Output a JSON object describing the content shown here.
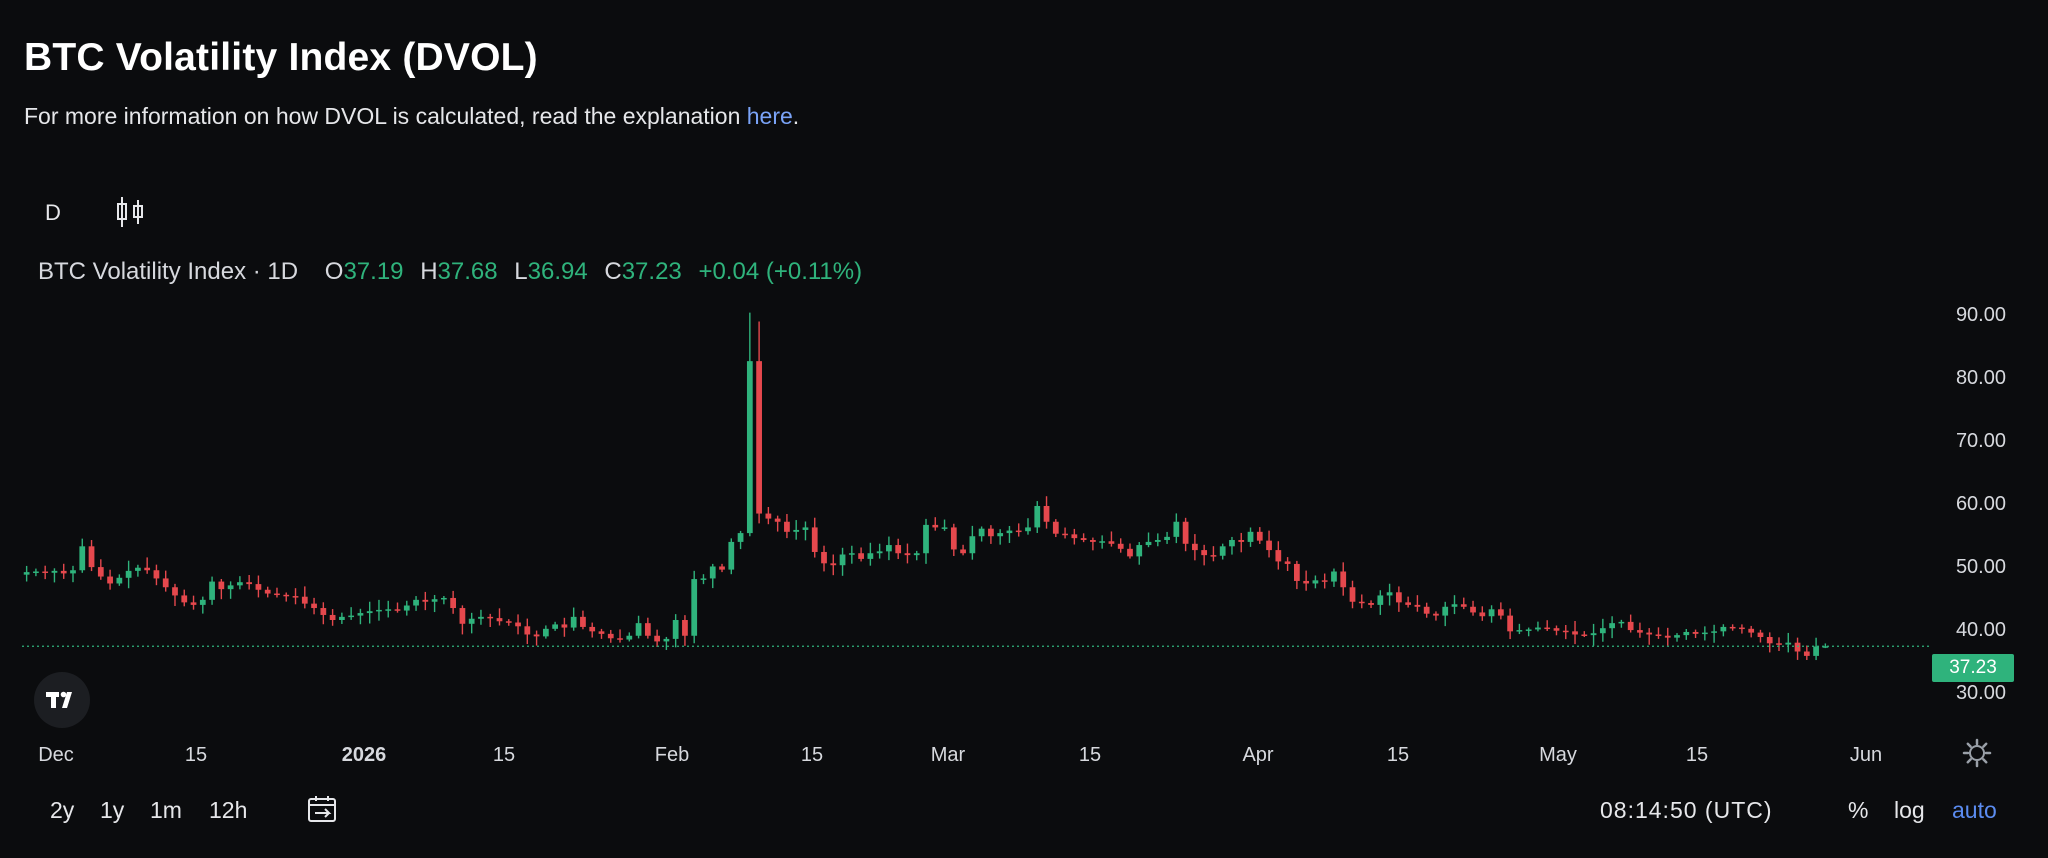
{
  "header": {
    "title": "BTC Volatility Index (DVOL)",
    "subtitle_prefix": "For more information on how DVOL is calculated, read the explanation ",
    "subtitle_link": "here",
    "subtitle_suffix": "."
  },
  "toolbar": {
    "interval_label": "D",
    "chart_type_icon": "candlestick-icon"
  },
  "legend": {
    "symbol": "BTC Volatility Index · 1D",
    "open_label": "O",
    "open": "37.19",
    "high_label": "H",
    "high": "37.68",
    "low_label": "L",
    "low": "36.94",
    "close_label": "C",
    "close": "37.23",
    "change": "+0.04 (+0.11%)"
  },
  "colors": {
    "up": "#2fb37c",
    "down": "#e5484d",
    "background": "#0b0c0e",
    "axis_text": "#d7d9de",
    "last_price_line": "#2fb37c",
    "link": "#7aa3f7",
    "active_scale": "#5b8cf0"
  },
  "chart_data": {
    "type": "candlestick",
    "title": "BTC Volatility Index · 1D",
    "x_tick_labels": [
      "Dec",
      "15",
      "2026",
      "15",
      "Feb",
      "15",
      "Mar",
      "15",
      "Apr",
      "15",
      "May",
      "15",
      "Jun"
    ],
    "y_tick_labels": [
      "90.00",
      "80.00",
      "70.00",
      "60.00",
      "50.00",
      "40.00",
      "30.00"
    ],
    "ylim": [
      26,
      93
    ],
    "last_price": 37.23,
    "last_price_label": "37.23",
    "grid": false,
    "candle_series_note_dates": "2025-11-28 to 2026-05-28, one candle per day",
    "start_date": "2025-11-28",
    "close": [
      49.0,
      49.1,
      48.9,
      49.2,
      48.8,
      49.3,
      53.1,
      49.8,
      48.3,
      47.2,
      48.1,
      49.2,
      49.7,
      49.3,
      48.0,
      46.6,
      45.3,
      44.2,
      43.8,
      44.6,
      47.5,
      46.3,
      46.9,
      47.4,
      47.1,
      46.2,
      45.6,
      45.4,
      45.2,
      45.1,
      44.0,
      43.3,
      42.2,
      41.4,
      41.9,
      42.1,
      42.5,
      42.8,
      43.0,
      43.1,
      42.9,
      43.7,
      44.6,
      44.3,
      44.7,
      44.9,
      43.3,
      40.8,
      41.6,
      41.9,
      41.7,
      41.2,
      41.0,
      40.4,
      39.1,
      38.8,
      40.0,
      40.7,
      40.2,
      41.9,
      40.3,
      39.6,
      39.2,
      38.5,
      38.3,
      38.9,
      40.9,
      38.9,
      38.0,
      38.4,
      41.4,
      38.9,
      47.9,
      48.0,
      49.9,
      49.4,
      53.8,
      55.2,
      82.5,
      58.3,
      57.5,
      57.0,
      55.4,
      55.7,
      56.1,
      52.2,
      50.4,
      50.1,
      51.8,
      52.0,
      51.1,
      52.0,
      52.3,
      53.3,
      52.0,
      51.7,
      52.0,
      56.5,
      56.1,
      56.1,
      52.6,
      52.0,
      54.7,
      55.9,
      54.7,
      55.2,
      55.6,
      55.5,
      56.1,
      59.5,
      57.0,
      55.1,
      55.0,
      54.4,
      54.1,
      53.8,
      53.9,
      53.5,
      52.7,
      51.5,
      53.3,
      53.8,
      54.1,
      54.6,
      57.0,
      53.5,
      52.5,
      51.7,
      51.6,
      53.1,
      54.1,
      53.8,
      55.4,
      54.0,
      52.5,
      50.7,
      50.3,
      47.6,
      47.2,
      47.7,
      47.5,
      49.1,
      46.6,
      44.3,
      44.1,
      43.8,
      45.3,
      45.8,
      44.2,
      43.8,
      43.5,
      42.4,
      42.1,
      43.5,
      43.9,
      43.5,
      42.6,
      42.0,
      43.1,
      42.1,
      39.6,
      39.8,
      39.9,
      40.2,
      40.1,
      39.7,
      39.6,
      39.1,
      39.0,
      39.3,
      40.1,
      40.9,
      41.1,
      39.8,
      39.4,
      39.1,
      38.9,
      38.6,
      39.0,
      39.5,
      39.2,
      39.4,
      39.6,
      40.3,
      40.2,
      40.0,
      39.4,
      38.7,
      37.7,
      37.5,
      37.8,
      36.4,
      35.7,
      37.19,
      37.23
    ]
  },
  "bottom_bar": {
    "ranges": [
      "2y",
      "1y",
      "1m",
      "12h"
    ],
    "date_range_icon": "calendar-goto-icon",
    "clock": "08:14:50 (UTC)",
    "percent_label": "%",
    "log_label": "log",
    "auto_label": "auto",
    "settings_icon": "gear-icon"
  }
}
